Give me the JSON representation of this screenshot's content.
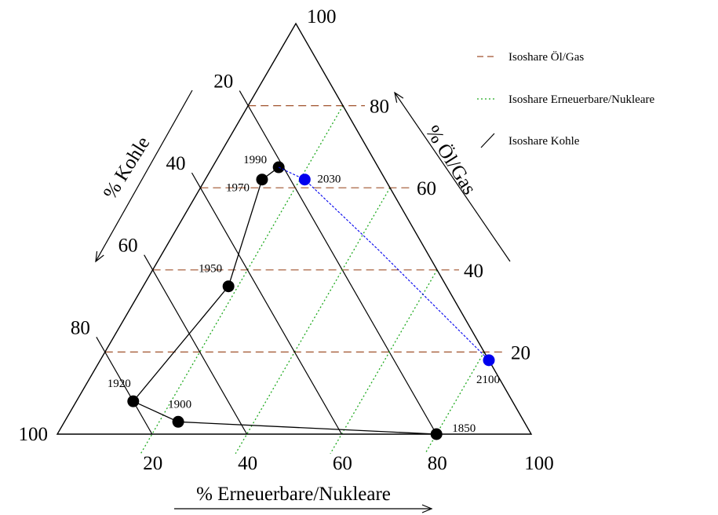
{
  "chart_data": {
    "type": "ternary",
    "axes": {
      "oil_gas": {
        "label": "% Öl/Gas",
        "color": "#a0522d",
        "ticks": [
          "20",
          "40",
          "60",
          "80",
          "100"
        ]
      },
      "coal": {
        "label": "% Kohle",
        "color": "#000000",
        "ticks": [
          "20",
          "40",
          "60",
          "80",
          "100"
        ]
      },
      "renewable": {
        "label": "% Erneuerbare/Nukleare",
        "color": "#22aa22",
        "ticks": [
          "20",
          "40",
          "60",
          "80",
          "100"
        ]
      }
    },
    "legend": {
      "placement": "top-right",
      "items": [
        {
          "label": "Isoshare Öl/Gas",
          "color": "#a0522d",
          "style": "dashed"
        },
        {
          "label": "Isoshare Erneuerbare/Nukleare",
          "color": "#22aa22",
          "style": "dotted"
        },
        {
          "label": "Isoshare Kohle",
          "color": "#000000",
          "style": "solid"
        }
      ]
    },
    "series": [
      {
        "color": "#000000",
        "line_style": "solid",
        "points": [
          {
            "year": "1850",
            "oil_gas": 0,
            "coal": 20,
            "renewable": 80
          },
          {
            "year": "1900",
            "oil_gas": 3,
            "coal": 73,
            "renewable": 24
          },
          {
            "year": "1920",
            "oil_gas": 8,
            "coal": 80,
            "renewable": 12
          },
          {
            "year": "1950",
            "oil_gas": 36,
            "coal": 46,
            "renewable": 18
          },
          {
            "year": "1970",
            "oil_gas": 62,
            "coal": 26,
            "renewable": 12
          },
          {
            "year": "1990",
            "oil_gas": 65,
            "coal": 21,
            "renewable": 14
          }
        ]
      },
      {
        "color": "#0000ee",
        "line_style": "dashed",
        "points": [
          {
            "year": "1990",
            "oil_gas": 65,
            "coal": 21,
            "renewable": 14,
            "marker": false
          },
          {
            "year": "2030",
            "oil_gas": 62,
            "coal": 17,
            "renewable": 21,
            "marker": true
          },
          {
            "year": "",
            "oil_gas": 45,
            "coal": 10,
            "renewable": 45,
            "marker": false
          },
          {
            "year": "2100",
            "oil_gas": 18,
            "coal": 0,
            "renewable": 82,
            "marker": true
          }
        ]
      }
    ]
  }
}
